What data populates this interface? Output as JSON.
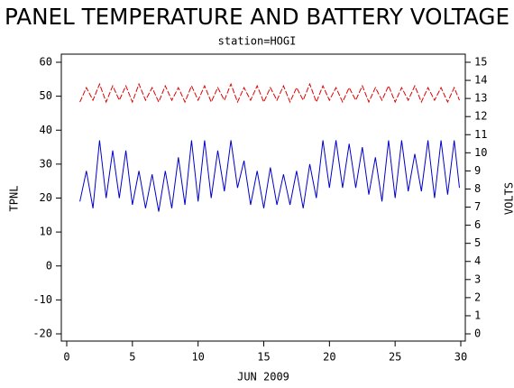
{
  "chart_data": {
    "type": "line",
    "title": "PANEL TEMPERATURE AND BATTERY VOLTAGE",
    "subtitle": "station=HOGI",
    "x_label": "JUN 2009",
    "y_label": "TPNL",
    "y2_label": "VOLTS",
    "x": [
      1,
      1.5,
      2,
      2.5,
      3,
      3.5,
      4,
      4.5,
      5,
      5.5,
      6,
      6.5,
      7,
      7.5,
      8,
      8.5,
      9,
      9.5,
      10,
      10.5,
      11,
      11.5,
      12,
      12.5,
      13,
      13.5,
      14,
      14.5,
      15,
      15.5,
      16,
      16.5,
      17,
      17.5,
      18,
      18.5,
      19,
      19.5,
      20,
      20.5,
      21,
      21.5,
      22,
      22.5,
      23,
      23.5,
      24,
      24.5,
      25,
      25.5,
      26,
      26.5,
      27,
      27.5,
      28,
      28.5,
      29,
      29.5,
      29.9
    ],
    "series": [
      {
        "name": "TPNL",
        "color": "#0000cc",
        "axis": "y",
        "values": [
          19,
          28,
          17,
          37,
          20,
          34,
          20,
          34,
          18,
          28,
          17,
          27,
          16,
          28,
          17,
          32,
          18,
          37,
          19,
          37,
          20,
          34,
          22,
          37,
          23,
          31,
          18,
          28,
          17,
          29,
          18,
          27,
          18,
          28,
          17,
          30,
          20,
          37,
          23,
          37,
          23,
          36,
          23,
          35,
          21,
          32,
          19,
          37,
          20,
          37,
          22,
          33,
          22,
          37,
          20,
          37,
          21,
          37,
          23
        ]
      },
      {
        "name": "VOLTS",
        "color": "#dd0000",
        "axis": "y2",
        "dashed": true,
        "values": [
          12.8,
          13.6,
          12.9,
          13.8,
          12.8,
          13.7,
          12.9,
          13.7,
          12.8,
          13.8,
          12.9,
          13.6,
          12.8,
          13.7,
          12.9,
          13.6,
          12.8,
          13.7,
          12.9,
          13.7,
          12.8,
          13.6,
          12.9,
          13.8,
          12.8,
          13.6,
          12.9,
          13.7,
          12.8,
          13.6,
          12.9,
          13.7,
          12.8,
          13.6,
          12.9,
          13.8,
          12.8,
          13.7,
          12.9,
          13.6,
          12.8,
          13.6,
          12.9,
          13.7,
          12.8,
          13.6,
          12.9,
          13.7,
          12.8,
          13.6,
          12.9,
          13.7,
          12.8,
          13.6,
          12.9,
          13.6,
          12.8,
          13.6,
          12.9
        ]
      }
    ],
    "xlim": [
      0,
      30
    ],
    "xticks": [
      0,
      5,
      10,
      15,
      20,
      25,
      30
    ],
    "ylim": [
      -20,
      60
    ],
    "yticks": [
      -20,
      -10,
      0,
      10,
      20,
      30,
      40,
      50,
      60
    ],
    "y2lim": [
      0,
      15
    ],
    "y2ticks": [
      0,
      1,
      2,
      3,
      4,
      5,
      6,
      7,
      8,
      9,
      10,
      11,
      12,
      13,
      14,
      15
    ]
  }
}
